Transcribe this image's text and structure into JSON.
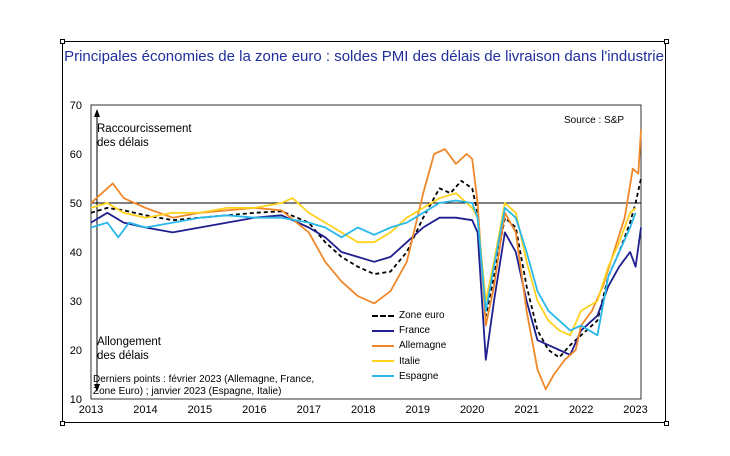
{
  "chart_data": {
    "type": "line",
    "title": "Principales économies de la zone euro : soldes PMI des délais de livraison dans l'industrie",
    "source": "Source : S&P",
    "annotation_top": [
      "Raccourcissement",
      "des délais"
    ],
    "annotation_bottom": [
      "Allongement",
      "des délais"
    ],
    "note": [
      "Derniers points : février 2023 (Allemagne, France,",
      "Zone Euro) ; janvier 2023 (Espagne, Italie)"
    ],
    "ylim": [
      10,
      70
    ],
    "yticks": [
      "10",
      "20",
      "30",
      "40",
      "50",
      "60",
      "70"
    ],
    "xlim": [
      2013,
      2023.1
    ],
    "xticks": [
      "2013",
      "2014",
      "2015",
      "2016",
      "2017",
      "2018",
      "2019",
      "2020",
      "2021",
      "2022",
      "2023"
    ],
    "reference_line": 50,
    "series": [
      {
        "name": "Zone euro",
        "color": "#000000",
        "dash": true,
        "points": [
          [
            2013,
            48
          ],
          [
            2013.3,
            49
          ],
          [
            2013.6,
            48.5
          ],
          [
            2014,
            47.5
          ],
          [
            2014.5,
            46.5
          ],
          [
            2015,
            47
          ],
          [
            2015.5,
            47.5
          ],
          [
            2016,
            48
          ],
          [
            2016.5,
            48.3
          ],
          [
            2017,
            46
          ],
          [
            2017.3,
            42
          ],
          [
            2017.6,
            39
          ],
          [
            2017.9,
            37
          ],
          [
            2018.2,
            35.5
          ],
          [
            2018.5,
            36
          ],
          [
            2018.8,
            40
          ],
          [
            2019.1,
            47
          ],
          [
            2019.4,
            53
          ],
          [
            2019.6,
            52
          ],
          [
            2019.8,
            54.5
          ],
          [
            2020,
            53
          ],
          [
            2020.1,
            48
          ],
          [
            2020.25,
            27
          ],
          [
            2020.4,
            35
          ],
          [
            2020.6,
            47
          ],
          [
            2020.8,
            45
          ],
          [
            2021,
            33
          ],
          [
            2021.2,
            24
          ],
          [
            2021.4,
            20
          ],
          [
            2021.6,
            18.5
          ],
          [
            2021.8,
            21
          ],
          [
            2022,
            23
          ],
          [
            2022.3,
            26
          ],
          [
            2022.5,
            35
          ],
          [
            2022.7,
            40
          ],
          [
            2022.9,
            46
          ],
          [
            2023,
            50
          ],
          [
            2023.1,
            55
          ]
        ]
      },
      {
        "name": "France",
        "color": "#1f1f8f",
        "dash": false,
        "points": [
          [
            2013,
            46
          ],
          [
            2013.3,
            48
          ],
          [
            2013.6,
            46
          ],
          [
            2014,
            45
          ],
          [
            2014.5,
            44
          ],
          [
            2015,
            45
          ],
          [
            2015.5,
            46
          ],
          [
            2016,
            47
          ],
          [
            2016.5,
            47.5
          ],
          [
            2017,
            45
          ],
          [
            2017.3,
            43
          ],
          [
            2017.6,
            40
          ],
          [
            2017.9,
            39
          ],
          [
            2018.2,
            38
          ],
          [
            2018.5,
            39
          ],
          [
            2018.8,
            42
          ],
          [
            2019.1,
            45
          ],
          [
            2019.4,
            47
          ],
          [
            2019.7,
            47
          ],
          [
            2020,
            46.5
          ],
          [
            2020.1,
            44
          ],
          [
            2020.25,
            18
          ],
          [
            2020.4,
            30
          ],
          [
            2020.6,
            44
          ],
          [
            2020.8,
            40
          ],
          [
            2021,
            30
          ],
          [
            2021.2,
            22
          ],
          [
            2021.4,
            21
          ],
          [
            2021.6,
            20
          ],
          [
            2021.8,
            19
          ],
          [
            2022,
            24
          ],
          [
            2022.3,
            27
          ],
          [
            2022.5,
            33
          ],
          [
            2022.7,
            37
          ],
          [
            2022.9,
            40
          ],
          [
            2023,
            37
          ],
          [
            2023.1,
            45
          ]
        ]
      },
      {
        "name": "Allemagne",
        "color": "#f0882a",
        "dash": false,
        "points": [
          [
            2013,
            50
          ],
          [
            2013.2,
            52
          ],
          [
            2013.4,
            54
          ],
          [
            2013.6,
            51
          ],
          [
            2014,
            49
          ],
          [
            2014.5,
            47
          ],
          [
            2015,
            48
          ],
          [
            2015.5,
            48.5
          ],
          [
            2016,
            49
          ],
          [
            2016.5,
            48.5
          ],
          [
            2017,
            44
          ],
          [
            2017.3,
            38
          ],
          [
            2017.6,
            34
          ],
          [
            2017.9,
            31
          ],
          [
            2018.2,
            29.5
          ],
          [
            2018.5,
            32
          ],
          [
            2018.8,
            38
          ],
          [
            2019.1,
            52
          ],
          [
            2019.3,
            60
          ],
          [
            2019.5,
            61
          ],
          [
            2019.7,
            58
          ],
          [
            2019.9,
            60
          ],
          [
            2020,
            59
          ],
          [
            2020.1,
            50
          ],
          [
            2020.25,
            25
          ],
          [
            2020.4,
            33
          ],
          [
            2020.6,
            48
          ],
          [
            2020.8,
            44
          ],
          [
            2021,
            28
          ],
          [
            2021.2,
            16
          ],
          [
            2021.35,
            12
          ],
          [
            2021.5,
            15
          ],
          [
            2021.7,
            18
          ],
          [
            2021.9,
            20
          ],
          [
            2022,
            25
          ],
          [
            2022.2,
            28
          ],
          [
            2022.4,
            33
          ],
          [
            2022.6,
            40
          ],
          [
            2022.8,
            47
          ],
          [
            2022.95,
            57
          ],
          [
            2023.05,
            56
          ],
          [
            2023.1,
            65
          ]
        ]
      },
      {
        "name": "Italie",
        "color": "#ffd21f",
        "dash": false,
        "points": [
          [
            2013,
            49
          ],
          [
            2013.3,
            50
          ],
          [
            2013.6,
            48
          ],
          [
            2014,
            47
          ],
          [
            2014.5,
            48
          ],
          [
            2015,
            48
          ],
          [
            2015.5,
            49
          ],
          [
            2016,
            49
          ],
          [
            2016.5,
            50
          ],
          [
            2016.7,
            51
          ],
          [
            2017,
            48
          ],
          [
            2017.3,
            46
          ],
          [
            2017.6,
            44
          ],
          [
            2017.9,
            42
          ],
          [
            2018.2,
            42
          ],
          [
            2018.5,
            44
          ],
          [
            2018.8,
            47
          ],
          [
            2019.1,
            49
          ],
          [
            2019.4,
            51
          ],
          [
            2019.7,
            52
          ],
          [
            2020,
            49
          ],
          [
            2020.1,
            47
          ],
          [
            2020.25,
            30
          ],
          [
            2020.4,
            38
          ],
          [
            2020.6,
            50
          ],
          [
            2020.8,
            48
          ],
          [
            2021,
            38
          ],
          [
            2021.2,
            30
          ],
          [
            2021.4,
            26
          ],
          [
            2021.6,
            24
          ],
          [
            2021.8,
            23
          ],
          [
            2022,
            28
          ],
          [
            2022.3,
            30
          ],
          [
            2022.5,
            37
          ],
          [
            2022.7,
            42
          ],
          [
            2022.9,
            48
          ],
          [
            2023,
            49
          ]
        ]
      },
      {
        "name": "Espagne",
        "color": "#2ab8ea",
        "dash": false,
        "points": [
          [
            2013,
            45
          ],
          [
            2013.3,
            46
          ],
          [
            2013.5,
            43
          ],
          [
            2013.7,
            46
          ],
          [
            2014,
            45
          ],
          [
            2014.5,
            46
          ],
          [
            2015,
            47
          ],
          [
            2015.5,
            47.5
          ],
          [
            2016,
            47
          ],
          [
            2016.5,
            47
          ],
          [
            2017,
            46
          ],
          [
            2017.3,
            45
          ],
          [
            2017.6,
            43
          ],
          [
            2017.9,
            45
          ],
          [
            2018.2,
            43.5
          ],
          [
            2018.5,
            45
          ],
          [
            2018.8,
            46
          ],
          [
            2019.1,
            48
          ],
          [
            2019.4,
            50
          ],
          [
            2019.7,
            50.5
          ],
          [
            2020,
            50
          ],
          [
            2020.1,
            47
          ],
          [
            2020.25,
            28
          ],
          [
            2020.4,
            37
          ],
          [
            2020.6,
            49
          ],
          [
            2020.8,
            47
          ],
          [
            2021,
            40
          ],
          [
            2021.2,
            32
          ],
          [
            2021.4,
            28
          ],
          [
            2021.6,
            26
          ],
          [
            2021.8,
            24
          ],
          [
            2022,
            25
          ],
          [
            2022.3,
            23
          ],
          [
            2022.5,
            35
          ],
          [
            2022.7,
            40
          ],
          [
            2022.9,
            45
          ],
          [
            2023,
            48
          ]
        ]
      }
    ]
  }
}
